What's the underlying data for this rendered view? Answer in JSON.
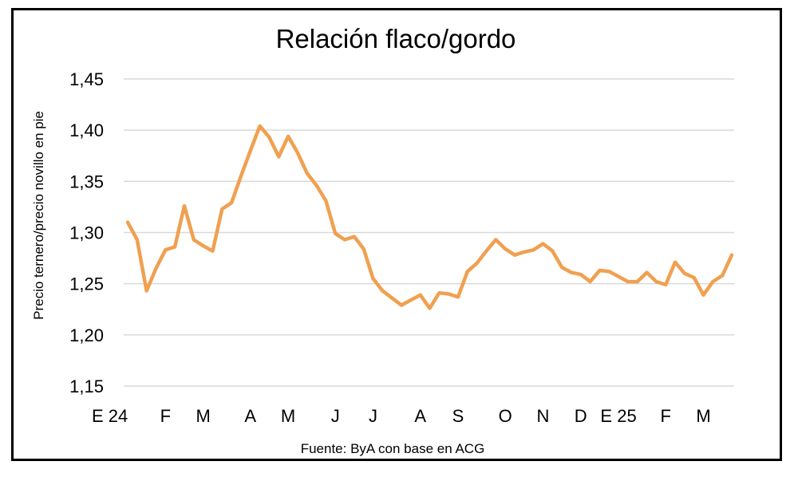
{
  "chart_data": {
    "type": "line",
    "title": "Relación flaco/gordo",
    "ylabel": "Precio ternero/precio novillo en pie",
    "xlabel": "",
    "source": "Fuente: ByA con base en ACG",
    "ylim": [
      1.15,
      1.45
    ],
    "yticks": [
      "1,15",
      "1,20",
      "1,25",
      "1,30",
      "1,35",
      "1,40",
      "1,45"
    ],
    "grid": true,
    "line_color": "#F0A050",
    "x_tick_labels": [
      {
        "label": "E 24",
        "index": 0
      },
      {
        "label": "F",
        "index": 4
      },
      {
        "label": "M",
        "index": 8
      },
      {
        "label": "A",
        "index": 13
      },
      {
        "label": "M",
        "index": 17
      },
      {
        "label": "J",
        "index": 22
      },
      {
        "label": "J",
        "index": 26
      },
      {
        "label": "A",
        "index": 31
      },
      {
        "label": "S",
        "index": 35
      },
      {
        "label": "O",
        "index": 40
      },
      {
        "label": "N",
        "index": 44
      },
      {
        "label": "D",
        "index": 48
      },
      {
        "label": "E 25",
        "index": 52
      },
      {
        "label": "F",
        "index": 57
      },
      {
        "label": "M",
        "index": 61
      }
    ],
    "series": [
      {
        "values": [
          1.31,
          1.293,
          1.243,
          1.265,
          1.283,
          1.286,
          1.326,
          1.293,
          1.287,
          1.282,
          1.323,
          1.329,
          1.355,
          1.38,
          1.404,
          1.393,
          1.374,
          1.394,
          1.378,
          1.358,
          1.346,
          1.331,
          1.299,
          1.293,
          1.296,
          1.284,
          1.255,
          1.243,
          1.236,
          1.229,
          1.234,
          1.239,
          1.226,
          1.241,
          1.24,
          1.237,
          1.262,
          1.27,
          1.282,
          1.293,
          1.284,
          1.278,
          1.281,
          1.283,
          1.289,
          1.282,
          1.266,
          1.261,
          1.259,
          1.252,
          1.263,
          1.262,
          1.257,
          1.252,
          1.252,
          1.261,
          1.252,
          1.249,
          1.271,
          1.26,
          1.256,
          1.239,
          1.252,
          1.258,
          1.278
        ]
      }
    ]
  }
}
